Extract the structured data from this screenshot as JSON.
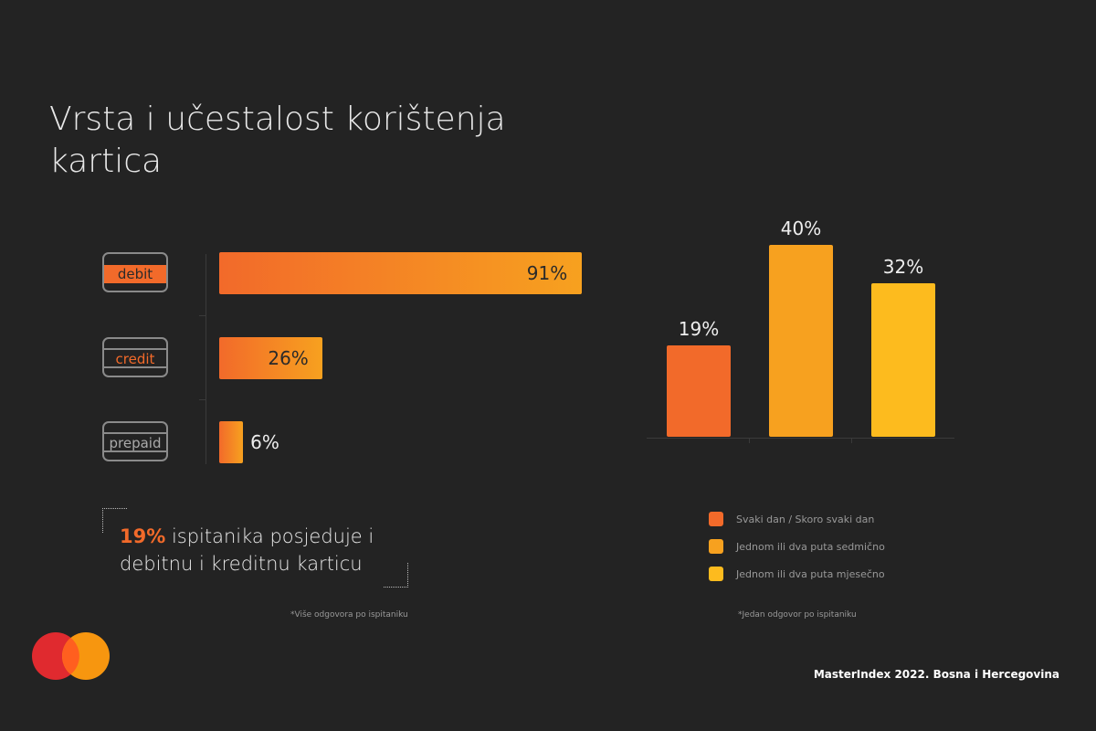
{
  "title": "Vrsta i učestalost korištenja kartica",
  "chart_data": [
    {
      "type": "bar",
      "orientation": "horizontal",
      "categories": [
        "debit",
        "credit",
        "prepaid"
      ],
      "values": [
        91,
        26,
        6
      ],
      "value_labels": [
        "91%",
        "26%",
        "6%"
      ],
      "unit": "%",
      "note": "*Više odgovora po ispitaniku",
      "colors": [
        "#F26A2A",
        "#F7A11F"
      ]
    },
    {
      "type": "bar",
      "orientation": "vertical",
      "categories": [
        "Svaki dan / Skoro svaki dan",
        "Jednom ili dva puta sedmično",
        "Jednom ili dva puta mjesečno"
      ],
      "values": [
        19,
        40,
        32
      ],
      "value_labels": [
        "19%",
        "40%",
        "32%"
      ],
      "unit": "%",
      "legend": "bottom",
      "colors": [
        "#F26A2A",
        "#F7A11F",
        "#FDBB1E"
      ],
      "note": "*Jedan odgovor po ispitaniku"
    }
  ],
  "callout": {
    "highlight": "19%",
    "text_line1": " ispitanika posjeduje i",
    "text_line2": "debitnu i kreditnu karticu",
    "accent": "#F26A2A"
  },
  "footer": "MasterIndex 2022. Bosna i Hercegovina",
  "logo": {
    "icon": "mastercard-circles",
    "colors": [
      "#E02A2F",
      "#F7960F"
    ]
  }
}
